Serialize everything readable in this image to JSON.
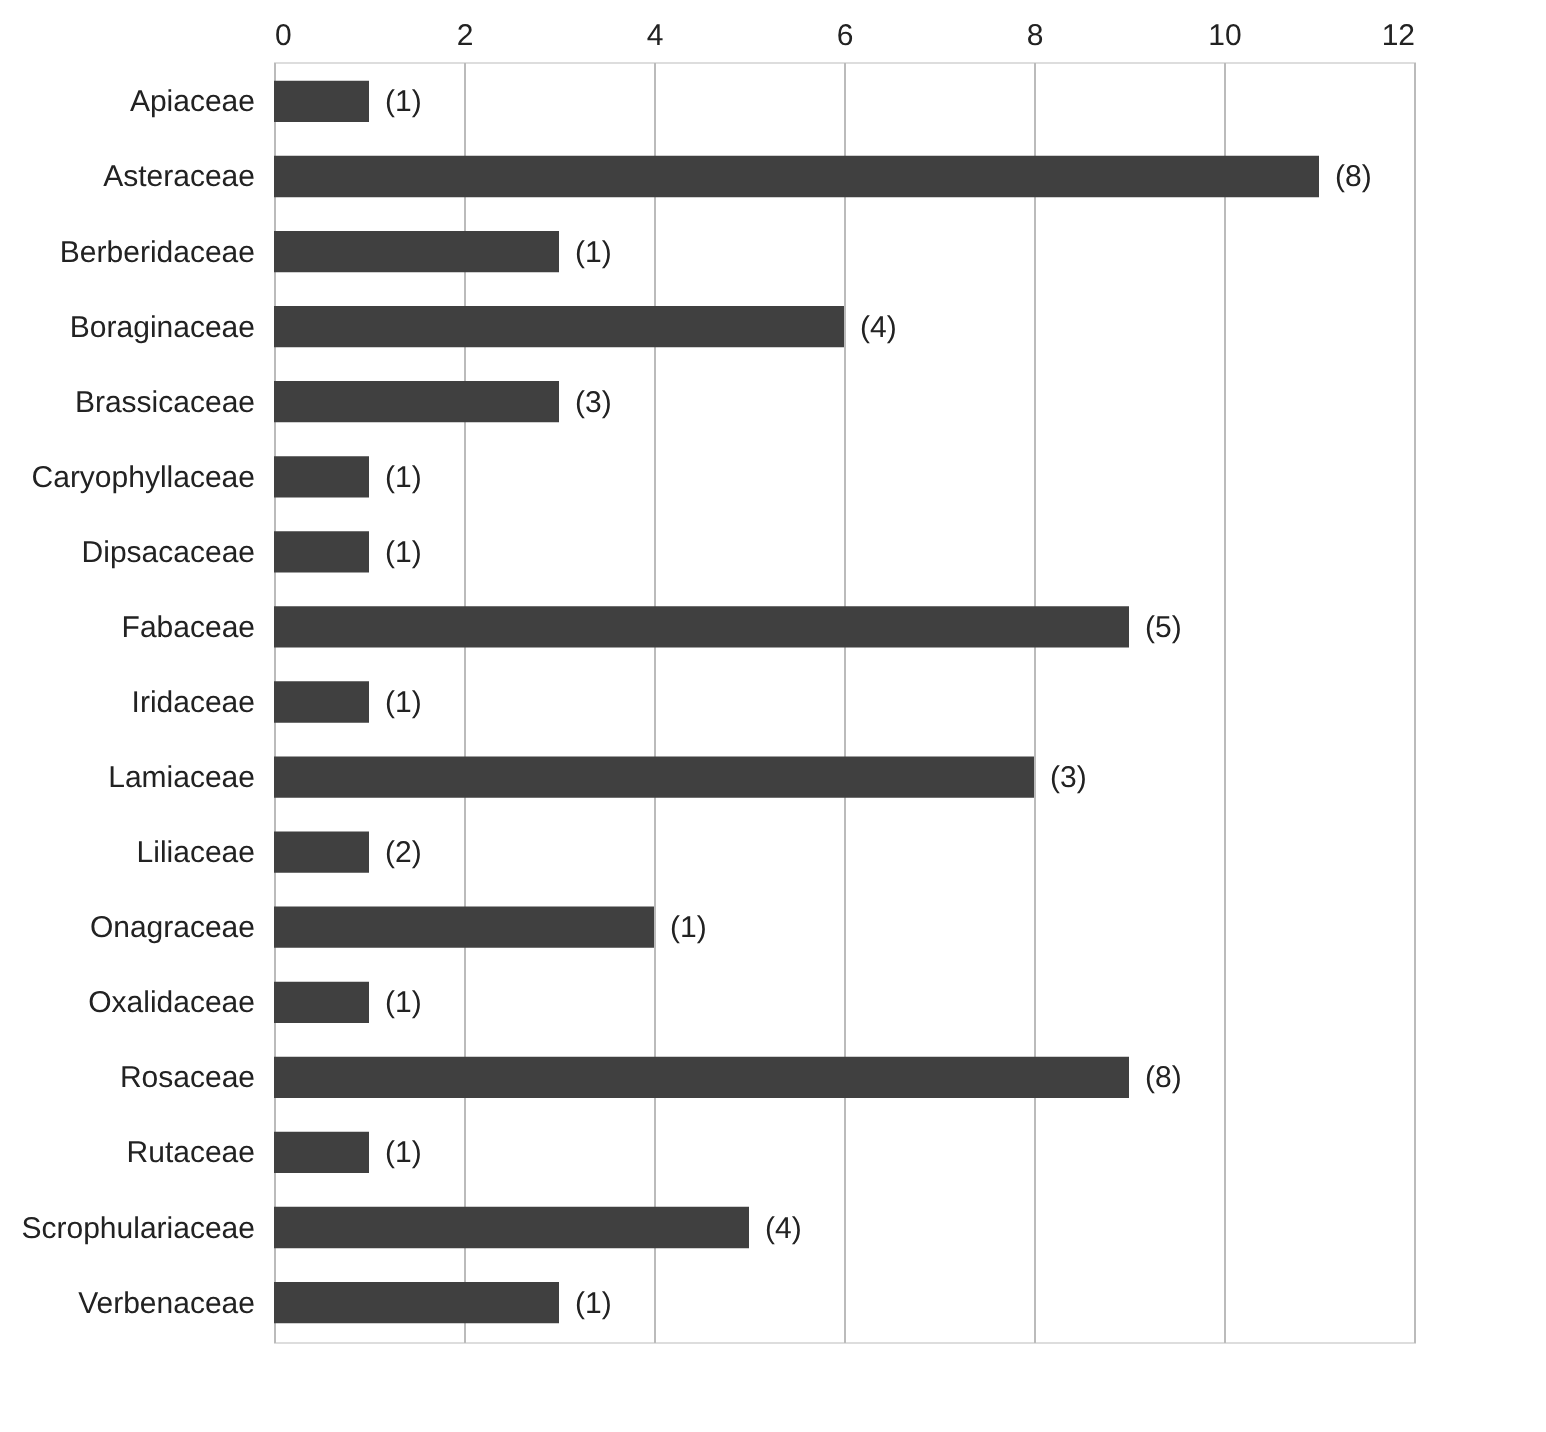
{
  "chart_data": {
    "type": "bar",
    "orientation": "horizontal",
    "categories": [
      "Apiaceae",
      "Asteraceae",
      "Berberidaceae",
      "Boraginaceae",
      "Brassicaceae",
      "Caryophyllaceae",
      "Dipsacaceae",
      "Fabaceae",
      "Iridaceae",
      "Lamiaceae",
      "Liliaceae",
      "Onagraceae",
      "Oxalidaceae",
      "Rosaceae",
      "Rutaceae",
      "Scrophulariaceae",
      "Verbenaceae"
    ],
    "values": [
      1,
      11,
      3,
      6,
      3,
      1,
      1,
      9,
      1,
      8,
      1,
      4,
      1,
      9,
      1,
      5,
      3
    ],
    "annotations": [
      {
        "text": "(1)",
        "x": 1,
        "y": "Apiaceae"
      },
      {
        "text": "(8)",
        "x": 11,
        "y": "Asteraceae"
      },
      {
        "text": "(1)",
        "x": 3,
        "y": "Berberidaceae"
      },
      {
        "text": "(4)",
        "x": 6,
        "y": "Boraginaceae"
      },
      {
        "text": "(3)",
        "x": 3,
        "y": "Brassicaceae"
      },
      {
        "text": "(1)",
        "x": 1,
        "y": "Caryophyllaceae"
      },
      {
        "text": "(1)",
        "x": 1,
        "y": "Dipsacaceae"
      },
      {
        "text": "(5)",
        "x": 9,
        "y": "Fabaceae"
      },
      {
        "text": "(1)",
        "x": 1,
        "y": "Iridaceae"
      },
      {
        "text": "(3)",
        "x": 8,
        "y": "Lamiaceae"
      },
      {
        "text": "(2)",
        "x": 1,
        "y": "Liliaceae"
      },
      {
        "text": "(1)",
        "x": 4,
        "y": "Onagraceae"
      },
      {
        "text": "(1)",
        "x": 1,
        "y": "Oxalidaceae"
      },
      {
        "text": "(8)",
        "x": 9,
        "y": "Rosaceae"
      },
      {
        "text": "(1)",
        "x": 1,
        "y": "Rutaceae"
      },
      {
        "text": "(4)",
        "x": 5,
        "y": "Scrophulariaceae"
      },
      {
        "text": "(1)",
        "x": 3,
        "y": "Verbenaceae"
      }
    ],
    "color": "#404040",
    "xlim": [
      0,
      12
    ],
    "xticks": [
      0,
      2,
      4,
      6,
      8,
      10,
      12
    ],
    "grid": "x"
  }
}
